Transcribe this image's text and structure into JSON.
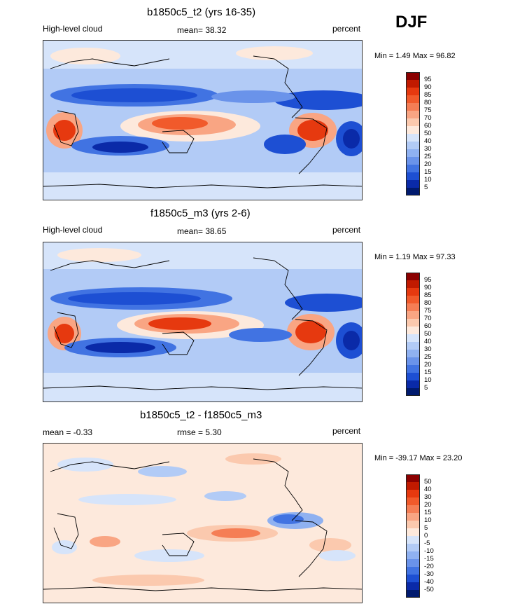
{
  "season": "DJF",
  "panels": [
    {
      "title": "b1850c5_t2 (yrs 16-35)",
      "left_label": "High-level cloud",
      "center_label": "mean=  38.32",
      "right_label": "percent",
      "minmax": "Min =   1.49 Max =  96.82",
      "colorbar_levels": [
        "95",
        "90",
        "85",
        "80",
        "75",
        "70",
        "60",
        "50",
        "40",
        "30",
        "25",
        "20",
        "15",
        "10",
        "5"
      ],
      "colorbar_colors": [
        "#8b0000",
        "#c11a00",
        "#e6390f",
        "#f15a2b",
        "#f57e55",
        "#f9a583",
        "#fbc9ae",
        "#fde9dc",
        "#d6e4fa",
        "#b2cbf6",
        "#8fb1f1",
        "#6a93ea",
        "#4173e2",
        "#1d4fd3",
        "#0a2aa8",
        "#001a6e"
      ]
    },
    {
      "title": "f1850c5_m3 (yrs 2-6)",
      "left_label": "High-level cloud",
      "center_label": "mean=  38.65",
      "right_label": "percent",
      "minmax": "Min =   1.19 Max =  97.33",
      "colorbar_levels": [
        "95",
        "90",
        "85",
        "80",
        "75",
        "70",
        "60",
        "50",
        "40",
        "30",
        "25",
        "20",
        "15",
        "10",
        "5"
      ],
      "colorbar_colors": [
        "#8b0000",
        "#c11a00",
        "#e6390f",
        "#f15a2b",
        "#f57e55",
        "#f9a583",
        "#fbc9ae",
        "#fde9dc",
        "#d6e4fa",
        "#b2cbf6",
        "#8fb1f1",
        "#6a93ea",
        "#4173e2",
        "#1d4fd3",
        "#0a2aa8",
        "#001a6e"
      ]
    },
    {
      "title": "b1850c5_t2 - f1850c5_m3",
      "left_label": "mean =  -0.33",
      "center_label": "rmse =   5.30",
      "right_label": "percent",
      "minmax": "Min = -39.17 Max =  23.20",
      "colorbar_levels": [
        "50",
        "40",
        "30",
        "20",
        "15",
        "10",
        "5",
        "0",
        "-5",
        "-10",
        "-15",
        "-20",
        "-30",
        "-40",
        "-50"
      ],
      "colorbar_colors": [
        "#8b0000",
        "#c11a00",
        "#e6390f",
        "#f15a2b",
        "#f57e55",
        "#f9a583",
        "#fbc9ae",
        "#fde9dc",
        "#d6e4fa",
        "#b2cbf6",
        "#8fb1f1",
        "#6a93ea",
        "#4173e2",
        "#1d4fd3",
        "#0a2aa8",
        "#001a6e"
      ]
    }
  ]
}
